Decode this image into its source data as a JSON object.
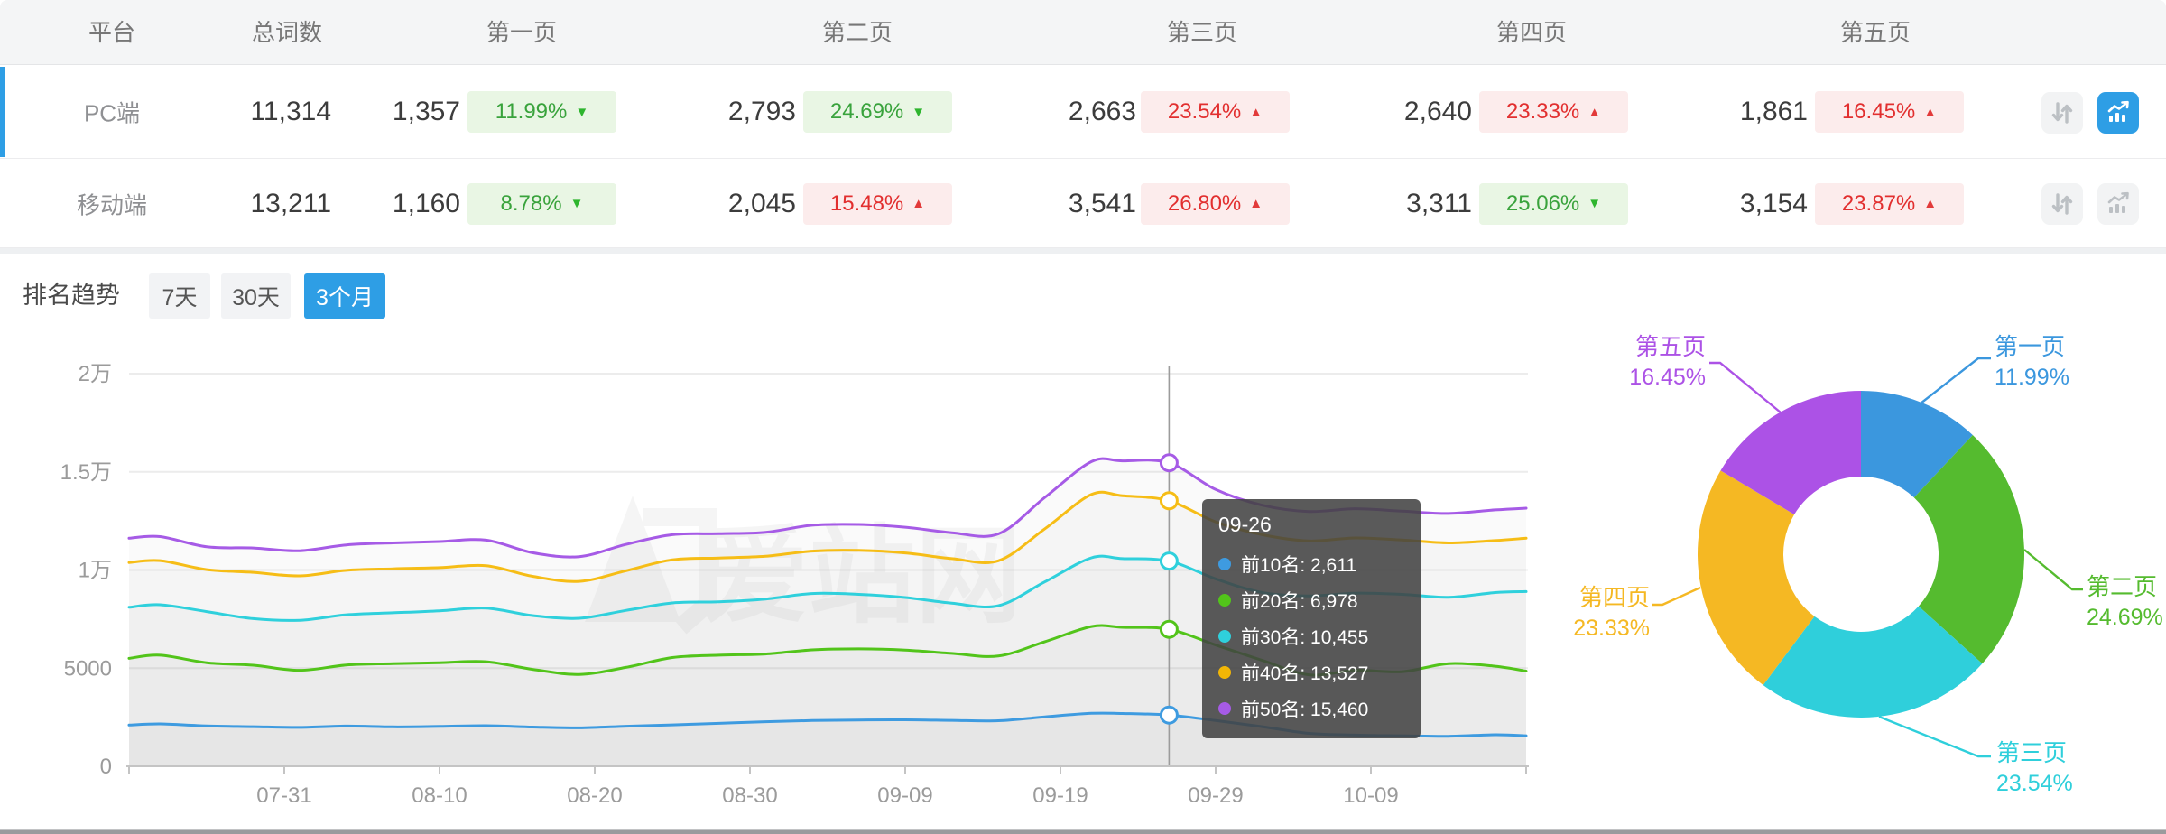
{
  "table": {
    "headers": [
      "平台",
      "总词数",
      "第一页",
      "第二页",
      "第三页",
      "第四页",
      "第五页"
    ],
    "rows": [
      {
        "platform": "PC端",
        "total": "11,314",
        "active": true,
        "pages": [
          {
            "count": "1,357",
            "pct": "11.99%",
            "trend": "down"
          },
          {
            "count": "2,793",
            "pct": "24.69%",
            "trend": "down"
          },
          {
            "count": "2,663",
            "pct": "23.54%",
            "trend": "up"
          },
          {
            "count": "2,640",
            "pct": "23.33%",
            "trend": "up"
          },
          {
            "count": "1,861",
            "pct": "16.45%",
            "trend": "up"
          }
        ]
      },
      {
        "platform": "移动端",
        "total": "13,211",
        "active": false,
        "pages": [
          {
            "count": "1,160",
            "pct": "8.78%",
            "trend": "down"
          },
          {
            "count": "2,045",
            "pct": "15.48%",
            "trend": "up"
          },
          {
            "count": "3,541",
            "pct": "26.80%",
            "trend": "up"
          },
          {
            "count": "3,311",
            "pct": "25.06%",
            "trend": "down"
          },
          {
            "count": "3,154",
            "pct": "23.87%",
            "trend": "up"
          }
        ]
      }
    ],
    "row_action_icons": [
      "sort-arrows-icon",
      "trend-chart-icon"
    ]
  },
  "trend": {
    "title": "排名趋势",
    "tabs": [
      {
        "label": "7天",
        "active": false
      },
      {
        "label": "30天",
        "active": false
      },
      {
        "label": "3个月",
        "active": true
      }
    ],
    "watermark": "爱站网"
  },
  "tooltip": {
    "title": "09-26",
    "items": [
      {
        "label": "前10名",
        "value": "2,611",
        "color": "#3e9be0"
      },
      {
        "label": "前20名",
        "value": "6,978",
        "color": "#52c41a"
      },
      {
        "label": "前30名",
        "value": "10,455",
        "color": "#2fd0dc"
      },
      {
        "label": "前40名",
        "value": "13,527",
        "color": "#f2b606"
      },
      {
        "label": "前50名",
        "value": "15,460",
        "color": "#a65be6"
      }
    ]
  },
  "colors": {
    "accent_blue": "#2e9ee5",
    "badge_green": "#39a33c",
    "badge_red": "#e22f2f"
  },
  "chart_data": [
    {
      "type": "line",
      "title": "排名趋势 (3个月)",
      "x_start_date": "07-21",
      "x_ticks": [
        {
          "day": 10,
          "label": "07-31"
        },
        {
          "day": 20,
          "label": "08-10"
        },
        {
          "day": 30,
          "label": "08-20"
        },
        {
          "day": 40,
          "label": "08-30"
        },
        {
          "day": 50,
          "label": "09-09"
        },
        {
          "day": 60,
          "label": "09-19"
        },
        {
          "day": 70,
          "label": "09-29"
        },
        {
          "day": 80,
          "label": "10-09"
        }
      ],
      "tick_days": [
        0,
        10,
        20,
        30,
        40,
        50,
        60,
        70,
        80,
        90
      ],
      "y_ticks": [
        {
          "v": 0,
          "label": "0"
        },
        {
          "v": 5000,
          "label": "5000"
        },
        {
          "v": 10000,
          "label": "1万"
        },
        {
          "v": 15000,
          "label": "1.5万"
        },
        {
          "v": 20000,
          "label": "2万"
        }
      ],
      "ylim": [
        0,
        20000
      ],
      "grid": true,
      "crosshair": {
        "day": 67,
        "date": "09-26"
      },
      "series": [
        {
          "name": "前10名",
          "color": "#3e9be0",
          "points": [
            [
              0,
              2100
            ],
            [
              2,
              2160
            ],
            [
              5,
              2060
            ],
            [
              8,
              2020
            ],
            [
              11,
              1980
            ],
            [
              14,
              2050
            ],
            [
              17,
              2010
            ],
            [
              20,
              2030
            ],
            [
              23,
              2070
            ],
            [
              26,
              2000
            ],
            [
              29,
              1960
            ],
            [
              32,
              2040
            ],
            [
              35,
              2110
            ],
            [
              38,
              2190
            ],
            [
              41,
              2270
            ],
            [
              44,
              2330
            ],
            [
              47,
              2360
            ],
            [
              50,
              2370
            ],
            [
              53,
              2340
            ],
            [
              56,
              2320
            ],
            [
              59,
              2520
            ],
            [
              62,
              2700
            ],
            [
              64,
              2690
            ],
            [
              67,
              2611
            ],
            [
              70,
              2330
            ],
            [
              73,
              2020
            ],
            [
              76,
              1680
            ],
            [
              79,
              1590
            ],
            [
              82,
              1560
            ],
            [
              85,
              1530
            ],
            [
              88,
              1610
            ],
            [
              90,
              1560
            ]
          ]
        },
        {
          "name": "前20名",
          "color": "#52c41a",
          "points": [
            [
              0,
              5500
            ],
            [
              2,
              5660
            ],
            [
              5,
              5280
            ],
            [
              8,
              5150
            ],
            [
              11,
              4890
            ],
            [
              14,
              5160
            ],
            [
              17,
              5230
            ],
            [
              20,
              5280
            ],
            [
              23,
              5330
            ],
            [
              26,
              4940
            ],
            [
              29,
              4680
            ],
            [
              32,
              5040
            ],
            [
              35,
              5540
            ],
            [
              38,
              5660
            ],
            [
              41,
              5720
            ],
            [
              44,
              5930
            ],
            [
              47,
              5980
            ],
            [
              50,
              5920
            ],
            [
              53,
              5750
            ],
            [
              56,
              5620
            ],
            [
              59,
              6350
            ],
            [
              62,
              7120
            ],
            [
              64,
              7080
            ],
            [
              67,
              6978
            ],
            [
              70,
              6180
            ],
            [
              73,
              5400
            ],
            [
              76,
              4660
            ],
            [
              79,
              4890
            ],
            [
              82,
              4820
            ],
            [
              85,
              5230
            ],
            [
              88,
              5100
            ],
            [
              90,
              4850
            ]
          ]
        },
        {
          "name": "前30名",
          "color": "#2fd0dc",
          "points": [
            [
              0,
              8100
            ],
            [
              2,
              8230
            ],
            [
              5,
              7880
            ],
            [
              8,
              7520
            ],
            [
              11,
              7440
            ],
            [
              14,
              7720
            ],
            [
              17,
              7820
            ],
            [
              20,
              7920
            ],
            [
              23,
              8060
            ],
            [
              26,
              7680
            ],
            [
              29,
              7540
            ],
            [
              32,
              7940
            ],
            [
              35,
              8320
            ],
            [
              38,
              8380
            ],
            [
              41,
              8520
            ],
            [
              44,
              8800
            ],
            [
              47,
              8760
            ],
            [
              50,
              8600
            ],
            [
              53,
              8310
            ],
            [
              56,
              8180
            ],
            [
              59,
              9400
            ],
            [
              62,
              10620
            ],
            [
              64,
              10580
            ],
            [
              67,
              10455
            ],
            [
              70,
              9550
            ],
            [
              73,
              8850
            ],
            [
              76,
              8680
            ],
            [
              79,
              8820
            ],
            [
              82,
              8760
            ],
            [
              85,
              8610
            ],
            [
              88,
              8850
            ],
            [
              90,
              8900
            ]
          ]
        },
        {
          "name": "前40名",
          "color": "#f6bd16",
          "points": [
            [
              0,
              10380
            ],
            [
              2,
              10480
            ],
            [
              5,
              10020
            ],
            [
              8,
              9880
            ],
            [
              11,
              9700
            ],
            [
              14,
              9980
            ],
            [
              17,
              10060
            ],
            [
              20,
              10120
            ],
            [
              23,
              10220
            ],
            [
              26,
              9680
            ],
            [
              29,
              9420
            ],
            [
              32,
              9960
            ],
            [
              35,
              10520
            ],
            [
              38,
              10610
            ],
            [
              41,
              10700
            ],
            [
              44,
              10960
            ],
            [
              47,
              11000
            ],
            [
              50,
              10870
            ],
            [
              53,
              10580
            ],
            [
              56,
              10470
            ],
            [
              59,
              12100
            ],
            [
              62,
              13850
            ],
            [
              64,
              13780
            ],
            [
              67,
              13527
            ],
            [
              70,
              12450
            ],
            [
              73,
              11800
            ],
            [
              76,
              11480
            ],
            [
              79,
              11630
            ],
            [
              82,
              11530
            ],
            [
              85,
              11380
            ],
            [
              88,
              11500
            ],
            [
              90,
              11620
            ]
          ]
        },
        {
          "name": "前50名",
          "color": "#a65be6",
          "points": [
            [
              0,
              11620
            ],
            [
              2,
              11700
            ],
            [
              5,
              11180
            ],
            [
              8,
              11120
            ],
            [
              11,
              10980
            ],
            [
              14,
              11280
            ],
            [
              17,
              11380
            ],
            [
              20,
              11450
            ],
            [
              23,
              11520
            ],
            [
              26,
              10880
            ],
            [
              29,
              10680
            ],
            [
              32,
              11300
            ],
            [
              35,
              11800
            ],
            [
              38,
              11850
            ],
            [
              41,
              11920
            ],
            [
              44,
              12280
            ],
            [
              47,
              12320
            ],
            [
              50,
              12180
            ],
            [
              53,
              11900
            ],
            [
              56,
              11840
            ],
            [
              59,
              13700
            ],
            [
              62,
              15520
            ],
            [
              64,
              15560
            ],
            [
              67,
              15460
            ],
            [
              70,
              14100
            ],
            [
              73,
              13300
            ],
            [
              76,
              12980
            ],
            [
              79,
              13120
            ],
            [
              82,
              13000
            ],
            [
              85,
              12880
            ],
            [
              88,
              13060
            ],
            [
              90,
              13150
            ]
          ]
        }
      ]
    },
    {
      "type": "pie",
      "subtype": "donut",
      "labels": [
        "第一页",
        "第二页",
        "第三页",
        "第四页",
        "第五页"
      ],
      "values": [
        11.99,
        24.69,
        23.54,
        23.33,
        16.45
      ],
      "pct_labels": [
        "11.99%",
        "24.69%",
        "23.54%",
        "23.33%",
        "16.45%"
      ],
      "colors": [
        "#3b97de",
        "#55bb2f",
        "#2fcfdb",
        "#f5b823",
        "#ac52e6"
      ],
      "legend_position": "callout"
    }
  ]
}
